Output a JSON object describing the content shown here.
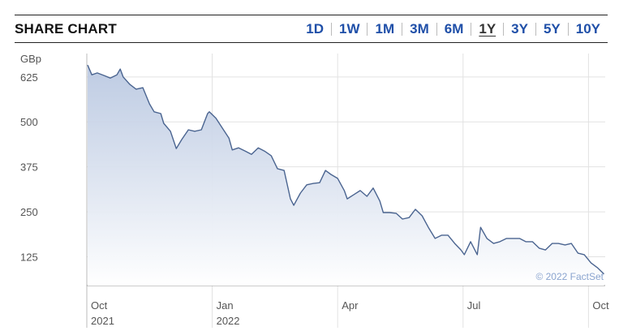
{
  "header": {
    "title": "SHARE CHART",
    "ranges": [
      "1D",
      "1W",
      "1M",
      "3M",
      "6M",
      "1Y",
      "3Y",
      "5Y",
      "10Y"
    ],
    "selected": "1Y"
  },
  "chart_data": {
    "type": "area",
    "y_unit": "GBp",
    "credit": "© 2022 FactSet",
    "color": "#4a6490",
    "fill": "#b7c6e0",
    "grid": true,
    "x": [
      0.02,
      0.12,
      0.25,
      0.41,
      0.56,
      0.72,
      0.8,
      0.87,
      1.03,
      1.18,
      1.34,
      1.5,
      1.61,
      1.77,
      1.84,
      2.0,
      2.14,
      2.27,
      2.43,
      2.58,
      2.74,
      2.89,
      2.93,
      3.09,
      3.24,
      3.4,
      3.48,
      3.63,
      3.79,
      3.94,
      4.1,
      4.25,
      4.41,
      4.56,
      4.72,
      4.87,
      4.95,
      5.11,
      5.26,
      5.42,
      5.57,
      5.71,
      5.84,
      6.0,
      6.16,
      6.23,
      6.39,
      6.54,
      6.7,
      6.85,
      7.01,
      7.09,
      7.24,
      7.4,
      7.55,
      7.71,
      7.86,
      8.02,
      8.17,
      8.33,
      8.49,
      8.64,
      8.8,
      8.95,
      9.03,
      9.18,
      9.34,
      9.42,
      9.57,
      9.73,
      9.88,
      10.04,
      10.19,
      10.35,
      10.5,
      10.66,
      10.82,
      10.97,
      11.13,
      11.28,
      11.44,
      11.59,
      11.75,
      11.9,
      12.06,
      12.21,
      12.37
    ],
    "values": [
      658,
      631,
      636,
      629,
      622,
      631,
      647,
      625,
      604,
      591,
      595,
      550,
      528,
      523,
      496,
      474,
      426,
      451,
      478,
      474,
      478,
      523,
      528,
      510,
      483,
      455,
      422,
      428,
      419,
      410,
      428,
      419,
      406,
      370,
      365,
      286,
      268,
      302,
      325,
      329,
      331,
      365,
      354,
      343,
      309,
      286,
      298,
      309,
      293,
      316,
      280,
      248,
      248,
      246,
      230,
      234,
      257,
      239,
      207,
      176,
      185,
      185,
      162,
      144,
      131,
      167,
      131,
      207,
      176,
      162,
      167,
      176,
      176,
      176,
      167,
      167,
      149,
      144,
      162,
      162,
      158,
      162,
      135,
      131,
      108,
      95,
      77
    ],
    "xlim": [
      0,
      12.4
    ],
    "ylim": [
      45,
      690
    ],
    "xticks": [
      {
        "value": 0,
        "label": "Oct"
      },
      {
        "value": 3,
        "label": "Jan"
      },
      {
        "value": 6,
        "label": "Apr"
      },
      {
        "value": 9,
        "label": "Jul"
      },
      {
        "value": 12,
        "label": "Oct"
      }
    ],
    "xtick_years": [
      {
        "value": 0,
        "label": "2021"
      },
      {
        "value": 3,
        "label": "2022"
      }
    ],
    "yticks": [
      125,
      250,
      375,
      500,
      625
    ]
  }
}
